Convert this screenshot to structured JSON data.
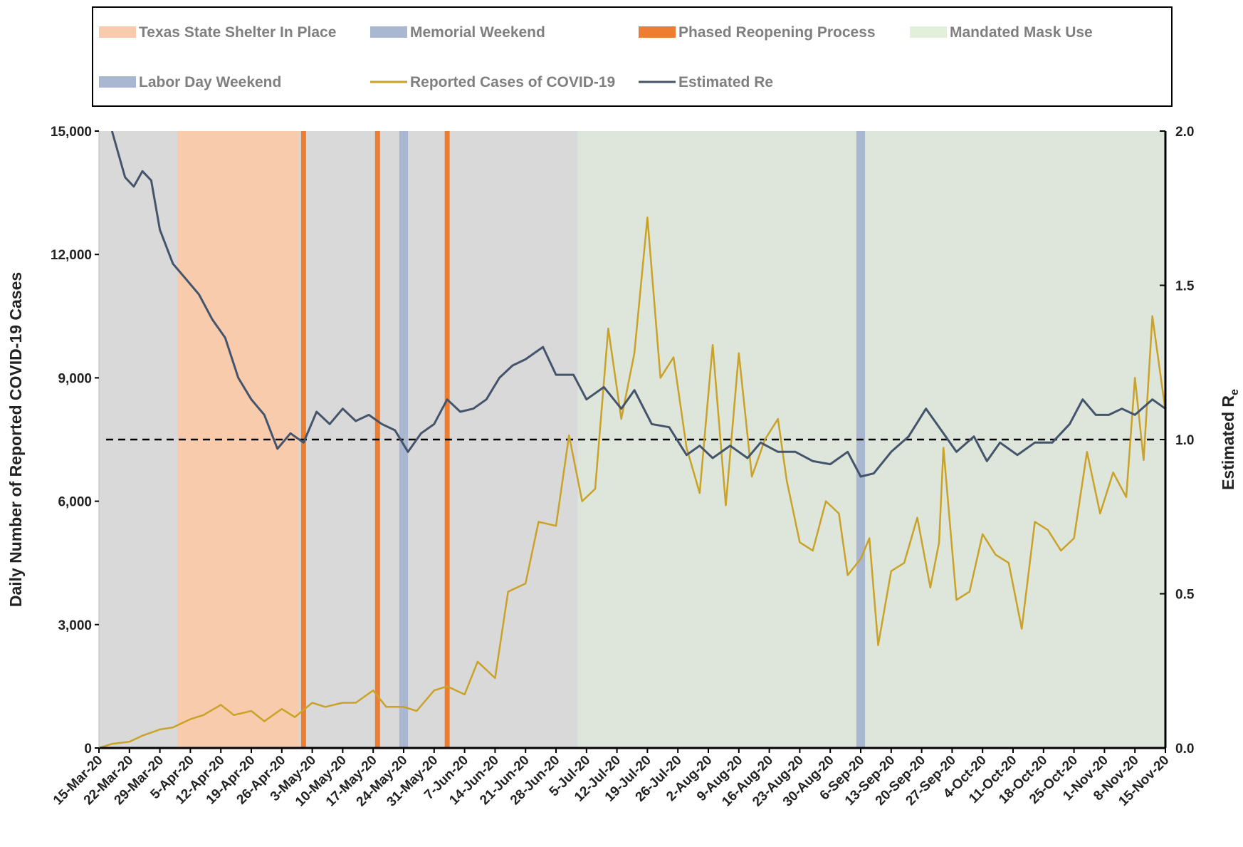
{
  "chart_data": {
    "type": "line",
    "y_label": "Daily Number of Reported COVID-19 Cases",
    "y2_label": "Estimated R",
    "y2_label_sub": "e",
    "xlim": [
      "2020-03-15",
      "2020-11-15"
    ],
    "xticks": [
      {
        "value": "2020-03-15",
        "label": "15-Mar-20"
      },
      {
        "value": "2020-03-22",
        "label": "22-Mar-20"
      },
      {
        "value": "2020-03-29",
        "label": "29-Mar-20"
      },
      {
        "value": "2020-04-05",
        "label": "5-Apr-20"
      },
      {
        "value": "2020-04-12",
        "label": "12-Apr-20"
      },
      {
        "value": "2020-04-19",
        "label": "19-Apr-20"
      },
      {
        "value": "2020-04-26",
        "label": "26-Apr-20"
      },
      {
        "value": "2020-05-03",
        "label": "3-May-20"
      },
      {
        "value": "2020-05-10",
        "label": "10-May-20"
      },
      {
        "value": "2020-05-17",
        "label": "17-May-20"
      },
      {
        "value": "2020-05-24",
        "label": "24-May-20"
      },
      {
        "value": "2020-05-31",
        "label": "31-May-20"
      },
      {
        "value": "2020-06-07",
        "label": "7-Jun-20"
      },
      {
        "value": "2020-06-14",
        "label": "14-Jun-20"
      },
      {
        "value": "2020-06-21",
        "label": "21-Jun-20"
      },
      {
        "value": "2020-06-28",
        "label": "28-Jun-20"
      },
      {
        "value": "2020-07-05",
        "label": "5-Jul-20"
      },
      {
        "value": "2020-07-12",
        "label": "12-Jul-20"
      },
      {
        "value": "2020-07-19",
        "label": "19-Jul-20"
      },
      {
        "value": "2020-07-26",
        "label": "26-Jul-20"
      },
      {
        "value": "2020-08-02",
        "label": "2-Aug-20"
      },
      {
        "value": "2020-08-09",
        "label": "9-Aug-20"
      },
      {
        "value": "2020-08-16",
        "label": "16-Aug-20"
      },
      {
        "value": "2020-08-23",
        "label": "23-Aug-20"
      },
      {
        "value": "2020-08-30",
        "label": "30-Aug-20"
      },
      {
        "value": "2020-09-06",
        "label": "6-Sep-20"
      },
      {
        "value": "2020-09-13",
        "label": "13-Sep-20"
      },
      {
        "value": "2020-09-20",
        "label": "20-Sep-20"
      },
      {
        "value": "2020-09-27",
        "label": "27-Sep-20"
      },
      {
        "value": "2020-10-04",
        "label": "4-Oct-20"
      },
      {
        "value": "2020-10-11",
        "label": "11-Oct-20"
      },
      {
        "value": "2020-10-18",
        "label": "18-Oct-20"
      },
      {
        "value": "2020-10-25",
        "label": "25-Oct-20"
      },
      {
        "value": "2020-11-01",
        "label": "1-Nov-20"
      },
      {
        "value": "2020-11-08",
        "label": "8-Nov-20"
      },
      {
        "value": "2020-11-15",
        "label": "15-Nov-20"
      }
    ],
    "ylim": [
      0,
      15000
    ],
    "yticks": [
      0,
      {
        "value": 3000,
        "label": "3,000"
      },
      {
        "value": 6000,
        "label": "6,000"
      },
      {
        "value": 9000,
        "label": "9,000"
      },
      {
        "value": 12000,
        "label": "12,000"
      },
      {
        "value": 15000,
        "label": "15,000"
      }
    ],
    "y2lim": [
      0,
      2
    ],
    "y2ticks": [
      {
        "value": 0,
        "label": "0.0"
      },
      0.5,
      {
        "value": 1,
        "label": "1.0"
      },
      1.5,
      {
        "value": 2,
        "label": "2.0"
      }
    ],
    "reference_line": {
      "axis": "y2",
      "value": 1
    },
    "spans": [
      {
        "name": "Texas State Shelter In Place",
        "color": "#f8cbad",
        "start": "2020-04-02",
        "end": "2020-04-30"
      },
      {
        "name": "Memorial Weekend",
        "color": "#a9b8d0",
        "start": "2020-05-23",
        "end": "2020-05-25"
      },
      {
        "name": "Phased Reopening Process",
        "color": "#ed7d31",
        "dates": [
          "2020-05-01",
          "2020-05-18",
          "2020-06-03"
        ]
      },
      {
        "name": "Mandated Mask Use",
        "color": "#e2efda",
        "start": "2020-07-03",
        "end": "2020-11-15"
      },
      {
        "name": "Labor Day Weekend",
        "color": "#a9b8d0",
        "start": "2020-09-05",
        "end": "2020-09-07"
      }
    ],
    "series": [
      {
        "name": "Reported Cases of COVID-19",
        "color": "#c9a227",
        "x": [
          "2020-03-15",
          "2020-03-18",
          "2020-03-22",
          "2020-03-25",
          "2020-03-29",
          "2020-04-01",
          "2020-04-05",
          "2020-04-08",
          "2020-04-12",
          "2020-04-15",
          "2020-04-19",
          "2020-04-22",
          "2020-04-26",
          "2020-04-29",
          "2020-05-03",
          "2020-05-06",
          "2020-05-10",
          "2020-05-13",
          "2020-05-17",
          "2020-05-20",
          "2020-05-24",
          "2020-05-27",
          "2020-05-31",
          "2020-06-03",
          "2020-06-07",
          "2020-06-10",
          "2020-06-14",
          "2020-06-17",
          "2020-06-21",
          "2020-06-24",
          "2020-06-28",
          "2020-07-01",
          "2020-07-04",
          "2020-07-07",
          "2020-07-10",
          "2020-07-13",
          "2020-07-16",
          "2020-07-19",
          "2020-07-22",
          "2020-07-25",
          "2020-07-28",
          "2020-07-31",
          "2020-08-03",
          "2020-08-06",
          "2020-08-09",
          "2020-08-12",
          "2020-08-15",
          "2020-08-18",
          "2020-08-20",
          "2020-08-23",
          "2020-08-26",
          "2020-08-29",
          "2020-09-01",
          "2020-09-03",
          "2020-09-06",
          "2020-09-08",
          "2020-09-10",
          "2020-09-13",
          "2020-09-16",
          "2020-09-19",
          "2020-09-22",
          "2020-09-24",
          "2020-09-25",
          "2020-09-28",
          "2020-10-01",
          "2020-10-04",
          "2020-10-07",
          "2020-10-10",
          "2020-10-13",
          "2020-10-16",
          "2020-10-19",
          "2020-10-22",
          "2020-10-25",
          "2020-10-28",
          "2020-10-31",
          "2020-11-03",
          "2020-11-06",
          "2020-11-08",
          "2020-11-10",
          "2020-11-12",
          "2020-11-15"
        ],
        "values": [
          0,
          100,
          150,
          300,
          450,
          500,
          700,
          800,
          1050,
          800,
          900,
          650,
          950,
          750,
          1100,
          1000,
          1100,
          1100,
          1400,
          1000,
          1000,
          900,
          1400,
          1500,
          1300,
          2100,
          1700,
          3800,
          4000,
          5500,
          5400,
          7600,
          6000,
          6300,
          10200,
          8000,
          9600,
          12900,
          9000,
          9500,
          7300,
          6200,
          9800,
          5900,
          9600,
          6600,
          7500,
          8000,
          6500,
          5000,
          4800,
          6000,
          5700,
          4200,
          4600,
          5100,
          2500,
          4300,
          4500,
          5600,
          3900,
          5000,
          7300,
          3600,
          3800,
          5200,
          4700,
          4500,
          2900,
          5500,
          5300,
          4800,
          5100,
          7200,
          5700,
          6700,
          6100,
          9000,
          7000,
          10500,
          8200
        ]
      },
      {
        "name": "Estimated Re",
        "color": "#44546a",
        "axis": "y2",
        "x": [
          "2020-03-18",
          "2020-03-21",
          "2020-03-23",
          "2020-03-25",
          "2020-03-27",
          "2020-03-29",
          "2020-04-01",
          "2020-04-04",
          "2020-04-07",
          "2020-04-10",
          "2020-04-13",
          "2020-04-16",
          "2020-04-19",
          "2020-04-22",
          "2020-04-25",
          "2020-04-28",
          "2020-05-01",
          "2020-05-04",
          "2020-05-07",
          "2020-05-10",
          "2020-05-13",
          "2020-05-16",
          "2020-05-19",
          "2020-05-22",
          "2020-05-25",
          "2020-05-28",
          "2020-05-31",
          "2020-06-03",
          "2020-06-06",
          "2020-06-09",
          "2020-06-12",
          "2020-06-15",
          "2020-06-18",
          "2020-06-21",
          "2020-06-25",
          "2020-06-28",
          "2020-07-02",
          "2020-07-05",
          "2020-07-09",
          "2020-07-13",
          "2020-07-16",
          "2020-07-20",
          "2020-07-24",
          "2020-07-28",
          "2020-07-31",
          "2020-08-03",
          "2020-08-07",
          "2020-08-11",
          "2020-08-14",
          "2020-08-18",
          "2020-08-22",
          "2020-08-26",
          "2020-08-30",
          "2020-09-03",
          "2020-09-06",
          "2020-09-09",
          "2020-09-13",
          "2020-09-17",
          "2020-09-21",
          "2020-09-25",
          "2020-09-28",
          "2020-10-02",
          "2020-10-05",
          "2020-10-08",
          "2020-10-12",
          "2020-10-16",
          "2020-10-20",
          "2020-10-24",
          "2020-10-27",
          "2020-10-30",
          "2020-11-02",
          "2020-11-05",
          "2020-11-08",
          "2020-11-12",
          "2020-11-15"
        ],
        "values": [
          2.0,
          1.85,
          1.82,
          1.87,
          1.84,
          1.68,
          1.57,
          1.52,
          1.47,
          1.39,
          1.33,
          1.2,
          1.13,
          1.08,
          0.97,
          1.02,
          0.99,
          1.09,
          1.05,
          1.1,
          1.06,
          1.08,
          1.05,
          1.03,
          0.96,
          1.02,
          1.05,
          1.13,
          1.09,
          1.1,
          1.13,
          1.2,
          1.24,
          1.26,
          1.3,
          1.21,
          1.21,
          1.13,
          1.17,
          1.1,
          1.16,
          1.05,
          1.04,
          0.95,
          0.98,
          0.94,
          0.98,
          0.94,
          0.99,
          0.96,
          0.96,
          0.93,
          0.92,
          0.96,
          0.88,
          0.89,
          0.96,
          1.01,
          1.1,
          1.02,
          0.96,
          1.01,
          0.93,
          0.99,
          0.95,
          0.99,
          0.99,
          1.05,
          1.13,
          1.08,
          1.08,
          1.1,
          1.08,
          1.13,
          1.1
        ]
      }
    ]
  }
}
